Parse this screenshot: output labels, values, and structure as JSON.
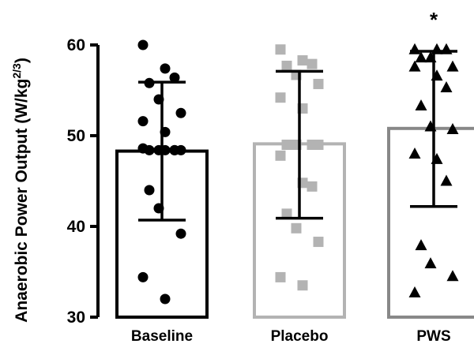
{
  "chart_data": {
    "type": "bar",
    "ylabel": {
      "main": "Anaerobic Power Output (W/kg",
      "sup": "2/3",
      "close": ")"
    },
    "ylim": [
      30,
      60
    ],
    "yticks": [
      30,
      40,
      50,
      60
    ],
    "ytick_labels": [
      "30",
      "40",
      "50",
      "60"
    ],
    "grid": false,
    "categories": [
      "Baseline",
      "Placebo",
      "PWS"
    ],
    "bars": [
      {
        "category": "Baseline",
        "mean": 48.3,
        "sd_low": 40.7,
        "sd_high": 55.9,
        "color": "#000000",
        "marker": "circle",
        "points": [
          60.0,
          57.4,
          56.4,
          55.8,
          54.0,
          52.5,
          51.6,
          50.4,
          48.4,
          48.4,
          48.4,
          48.4,
          48.6,
          48.4,
          48.4,
          44.0,
          42.0,
          39.2,
          34.4,
          32.0
        ]
      },
      {
        "category": "Placebo",
        "mean": 49.1,
        "sd_low": 40.9,
        "sd_high": 57.1,
        "color": "#b3b3b3",
        "marker": "square",
        "points": [
          59.5,
          58.3,
          57.9,
          57.7,
          56.7,
          55.7,
          54.2,
          53.0,
          49.0,
          49.0,
          49.0,
          49.0,
          47.8,
          44.8,
          44.4,
          41.4,
          39.8,
          38.3,
          34.4,
          33.5
        ]
      },
      {
        "category": "PWS",
        "mean": 50.8,
        "sd_low": 42.2,
        "sd_high": 59.3,
        "color": "#888888",
        "marker": "triangle",
        "points": [
          59.5,
          59.5,
          59.5,
          58.6,
          58.6,
          57.6,
          57.6,
          56.6,
          55.3,
          53.3,
          51.0,
          50.7,
          48.0,
          47.4,
          45.0,
          37.9,
          35.9,
          34.5,
          32.7
        ]
      }
    ],
    "annotations": [
      {
        "category": "PWS",
        "text": "*"
      }
    ]
  }
}
